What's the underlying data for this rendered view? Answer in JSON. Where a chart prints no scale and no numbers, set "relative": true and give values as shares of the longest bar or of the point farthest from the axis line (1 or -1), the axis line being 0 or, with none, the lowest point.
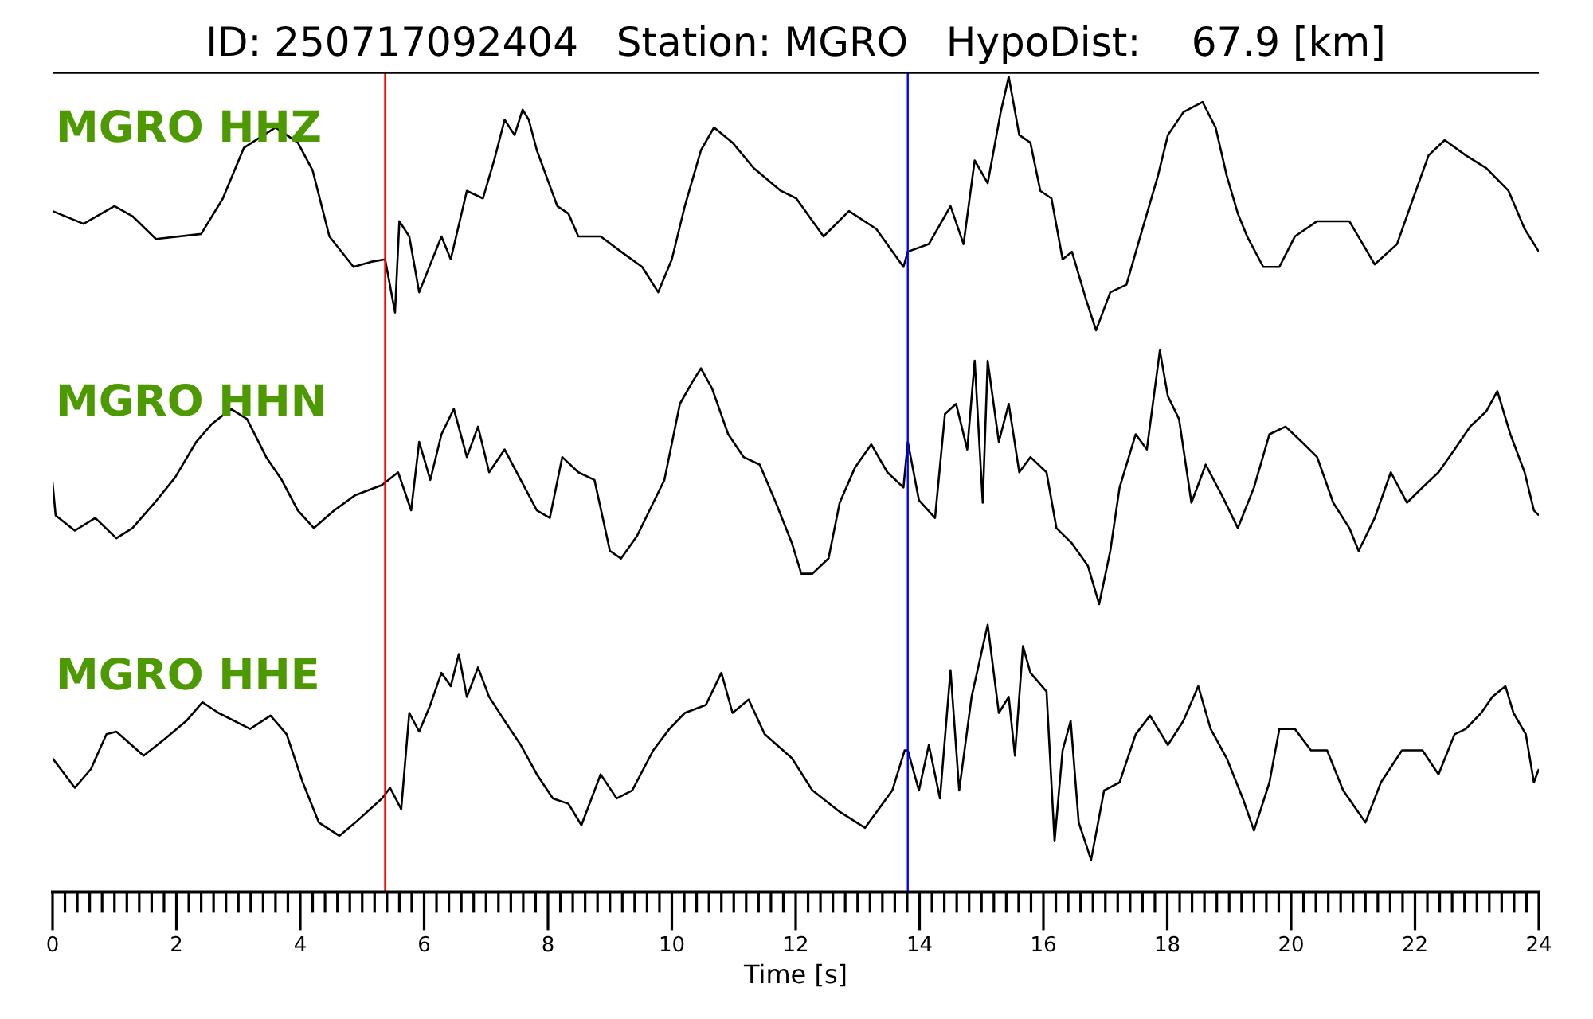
{
  "chart_data": [
    {
      "type": "line",
      "title": "ID: 250717092404   Station: MGRO   HypoDist:    67.9 [km]",
      "annotations": [
        "MGRO HHZ"
      ],
      "relative": true,
      "xlim": [
        0,
        24
      ],
      "tick_labels": false,
      "marker": "none",
      "x": [
        0,
        0.5,
        1.0,
        1.29,
        1.67,
        2.4,
        2.75,
        3.09,
        3.6,
        3.96,
        4.2,
        4.47,
        4.86,
        5.14,
        5.37,
        5.53,
        5.6,
        5.76,
        5.92,
        6.28,
        6.43,
        6.69,
        6.95,
        7.13,
        7.3,
        7.46,
        7.59,
        7.69,
        7.82,
        7.97,
        8.15,
        8.33,
        8.49,
        8.85,
        9.18,
        9.52,
        9.78,
        10.0,
        10.21,
        10.47,
        10.68,
        10.98,
        11.32,
        11.76,
        12.01,
        12.45,
        12.86,
        13.3,
        13.74,
        13.81,
        14.15,
        14.5,
        14.71,
        14.89,
        15.1,
        15.31,
        15.44,
        15.61,
        15.79,
        15.95,
        16.13,
        16.31,
        16.46,
        16.69,
        16.85,
        17.08,
        17.34,
        17.6,
        17.85,
        18.01,
        18.26,
        18.57,
        18.78,
        18.96,
        19.14,
        19.29,
        19.55,
        19.81,
        20.06,
        20.42,
        20.94,
        21.35,
        21.71,
        21.97,
        22.22,
        22.48,
        22.82,
        23.15,
        23.51,
        23.77,
        24
      ],
      "series": [
        {
          "color": "#000000",
          "values": [
            0.47,
            0.42,
            0.49,
            0.45,
            0.36,
            0.38,
            0.52,
            0.72,
            0.8,
            0.74,
            0.63,
            0.37,
            0.25,
            0.27,
            0.28,
            0.07,
            0.43,
            0.37,
            0.15,
            0.37,
            0.28,
            0.55,
            0.52,
            0.67,
            0.83,
            0.77,
            0.87,
            0.83,
            0.71,
            0.61,
            0.49,
            0.46,
            0.37,
            0.37,
            0.31,
            0.25,
            0.15,
            0.28,
            0.49,
            0.71,
            0.8,
            0.74,
            0.64,
            0.55,
            0.52,
            0.37,
            0.47,
            0.4,
            0.25,
            0.31,
            0.34,
            0.49,
            0.34,
            0.67,
            0.58,
            0.86,
            1,
            0.77,
            0.74,
            0.55,
            0.52,
            0.28,
            0.31,
            0.12,
            0,
            0.15,
            0.18,
            0.4,
            0.61,
            0.77,
            0.86,
            0.9,
            0.8,
            0.61,
            0.46,
            0.37,
            0.25,
            0.25,
            0.37,
            0.43,
            0.43,
            0.26,
            0.34,
            0.52,
            0.69,
            0.75,
            0.69,
            0.64,
            0.55,
            0.4,
            0.31
          ]
        }
      ],
      "ref_lines": [
        {
          "axis": "x",
          "value": 5.37,
          "color": "#ff0000"
        },
        {
          "axis": "x",
          "value": 13.81,
          "color": "#0000ff"
        }
      ]
    },
    {
      "type": "line",
      "annotations": [
        "MGRO HHN"
      ],
      "relative": true,
      "xlim": [
        0,
        24
      ],
      "tick_labels": false,
      "marker": "none",
      "x": [
        0,
        0.05,
        0.36,
        0.69,
        1.03,
        1.29,
        1.65,
        1.98,
        2.32,
        2.57,
        2.88,
        3.14,
        3.45,
        3.7,
        3.96,
        4.22,
        4.55,
        4.89,
        5.32,
        5.58,
        5.79,
        5.92,
        6.1,
        6.28,
        6.48,
        6.69,
        6.87,
        7.05,
        7.3,
        7.56,
        7.82,
        8.03,
        8.23,
        8.49,
        8.75,
        9.0,
        9.18,
        9.44,
        9.7,
        9.88,
        10.13,
        10.34,
        10.47,
        10.65,
        10.91,
        11.16,
        11.42,
        11.68,
        11.94,
        12.09,
        12.27,
        12.53,
        12.71,
        12.96,
        13.22,
        13.48,
        13.74,
        13.81,
        13.99,
        14.25,
        14.41,
        14.59,
        14.77,
        14.89,
        15.02,
        15.1,
        15.28,
        15.44,
        15.61,
        15.79,
        16.05,
        16.21,
        16.46,
        16.72,
        16.9,
        17.08,
        17.23,
        17.49,
        17.67,
        17.88,
        18.01,
        18.19,
        18.39,
        18.62,
        18.88,
        19.14,
        19.4,
        19.65,
        19.91,
        20.17,
        20.42,
        20.68,
        20.94,
        21.09,
        21.35,
        21.61,
        21.87,
        22.12,
        22.38,
        22.64,
        22.89,
        23.15,
        23.33,
        23.54,
        23.77,
        23.92,
        24
      ],
      "series": [
        {
          "color": "#000000",
          "values": [
            0.48,
            0.35,
            0.29,
            0.34,
            0.26,
            0.3,
            0.4,
            0.5,
            0.64,
            0.71,
            0.77,
            0.73,
            0.58,
            0.49,
            0.37,
            0.3,
            0.37,
            0.43,
            0.47,
            0.52,
            0.37,
            0.64,
            0.49,
            0.67,
            0.77,
            0.58,
            0.7,
            0.52,
            0.61,
            0.49,
            0.37,
            0.34,
            0.58,
            0.52,
            0.49,
            0.21,
            0.18,
            0.27,
            0.4,
            0.49,
            0.79,
            0.88,
            0.93,
            0.85,
            0.67,
            0.58,
            0.55,
            0.4,
            0.24,
            0.12,
            0.12,
            0.18,
            0.4,
            0.54,
            0.63,
            0.52,
            0.46,
            0.64,
            0.41,
            0.34,
            0.75,
            0.79,
            0.61,
            0.96,
            0.4,
            0.96,
            0.64,
            0.79,
            0.52,
            0.58,
            0.52,
            0.3,
            0.24,
            0.15,
            0,
            0.21,
            0.46,
            0.67,
            0.61,
            1,
            0.82,
            0.73,
            0.4,
            0.55,
            0.43,
            0.3,
            0.46,
            0.67,
            0.7,
            0.64,
            0.58,
            0.4,
            0.3,
            0.21,
            0.34,
            0.52,
            0.4,
            0.46,
            0.52,
            0.61,
            0.7,
            0.76,
            0.84,
            0.67,
            0.52,
            0.37,
            0.35
          ]
        }
      ],
      "ref_lines": [
        {
          "axis": "x",
          "value": 5.37,
          "color": "#ff0000"
        },
        {
          "axis": "x",
          "value": 13.81,
          "color": "#0000ff"
        }
      ]
    },
    {
      "type": "line",
      "annotations": [
        "MGRO HHE"
      ],
      "relative": true,
      "xlabel": "Time [s]",
      "xlim": [
        0,
        24
      ],
      "tick_labels": "x",
      "marker": "none",
      "xticks": [
        0,
        {
          "value": 0.2,
          "label": null
        },
        {
          "value": 0.4,
          "label": null
        },
        {
          "value": 0.6,
          "label": null
        },
        {
          "value": 0.8,
          "label": null
        },
        {
          "value": 1,
          "label": null
        },
        {
          "value": 1.2,
          "label": null
        },
        {
          "value": 1.4,
          "label": null
        },
        {
          "value": 1.6,
          "label": null
        },
        {
          "value": 1.8,
          "label": null
        },
        2,
        {
          "value": 2.2,
          "label": null
        },
        {
          "value": 2.4,
          "label": null
        },
        {
          "value": 2.6,
          "label": null
        },
        {
          "value": 2.8,
          "label": null
        },
        {
          "value": 3,
          "label": null
        },
        {
          "value": 3.2,
          "label": null
        },
        {
          "value": 3.4,
          "label": null
        },
        {
          "value": 3.6,
          "label": null
        },
        {
          "value": 3.8,
          "label": null
        },
        4,
        {
          "value": 4.2,
          "label": null
        },
        {
          "value": 4.4,
          "label": null
        },
        {
          "value": 4.6,
          "label": null
        },
        {
          "value": 4.8,
          "label": null
        },
        {
          "value": 5,
          "label": null
        },
        {
          "value": 5.2,
          "label": null
        },
        {
          "value": 5.4,
          "label": null
        },
        {
          "value": 5.6,
          "label": null
        },
        {
          "value": 5.8,
          "label": null
        },
        6,
        {
          "value": 6.2,
          "label": null
        },
        {
          "value": 6.4,
          "label": null
        },
        {
          "value": 6.6,
          "label": null
        },
        {
          "value": 6.8,
          "label": null
        },
        {
          "value": 7,
          "label": null
        },
        {
          "value": 7.2,
          "label": null
        },
        {
          "value": 7.4,
          "label": null
        },
        {
          "value": 7.6,
          "label": null
        },
        {
          "value": 7.8,
          "label": null
        },
        8,
        {
          "value": 8.2,
          "label": null
        },
        {
          "value": 8.4,
          "label": null
        },
        {
          "value": 8.6,
          "label": null
        },
        {
          "value": 8.8,
          "label": null
        },
        {
          "value": 9,
          "label": null
        },
        {
          "value": 9.2,
          "label": null
        },
        {
          "value": 9.4,
          "label": null
        },
        {
          "value": 9.6,
          "label": null
        },
        {
          "value": 9.8,
          "label": null
        },
        10,
        {
          "value": 10.2,
          "label": null
        },
        {
          "value": 10.4,
          "label": null
        },
        {
          "value": 10.6,
          "label": null
        },
        {
          "value": 10.8,
          "label": null
        },
        {
          "value": 11,
          "label": null
        },
        {
          "value": 11.2,
          "label": null
        },
        {
          "value": 11.4,
          "label": null
        },
        {
          "value": 11.6,
          "label": null
        },
        {
          "value": 11.8,
          "label": null
        },
        12,
        {
          "value": 12.2,
          "label": null
        },
        {
          "value": 12.4,
          "label": null
        },
        {
          "value": 12.6,
          "label": null
        },
        {
          "value": 12.8,
          "label": null
        },
        {
          "value": 13,
          "label": null
        },
        {
          "value": 13.2,
          "label": null
        },
        {
          "value": 13.4,
          "label": null
        },
        {
          "value": 13.6,
          "label": null
        },
        {
          "value": 13.8,
          "label": null
        },
        14,
        {
          "value": 14.2,
          "label": null
        },
        {
          "value": 14.4,
          "label": null
        },
        {
          "value": 14.6,
          "label": null
        },
        {
          "value": 14.8,
          "label": null
        },
        {
          "value": 15,
          "label": null
        },
        {
          "value": 15.2,
          "label": null
        },
        {
          "value": 15.4,
          "label": null
        },
        {
          "value": 15.6,
          "label": null
        },
        {
          "value": 15.8,
          "label": null
        },
        16,
        {
          "value": 16.2,
          "label": null
        },
        {
          "value": 16.4,
          "label": null
        },
        {
          "value": 16.6,
          "label": null
        },
        {
          "value": 16.8,
          "label": null
        },
        {
          "value": 17,
          "label": null
        },
        {
          "value": 17.2,
          "label": null
        },
        {
          "value": 17.4,
          "label": null
        },
        {
          "value": 17.6,
          "label": null
        },
        {
          "value": 17.8,
          "label": null
        },
        18,
        {
          "value": 18.2,
          "label": null
        },
        {
          "value": 18.4,
          "label": null
        },
        {
          "value": 18.6,
          "label": null
        },
        {
          "value": 18.8,
          "label": null
        },
        {
          "value": 19,
          "label": null
        },
        {
          "value": 19.2,
          "label": null
        },
        {
          "value": 19.4,
          "label": null
        },
        {
          "value": 19.6,
          "label": null
        },
        {
          "value": 19.8,
          "label": null
        },
        20,
        {
          "value": 20.2,
          "label": null
        },
        {
          "value": 20.4,
          "label": null
        },
        {
          "value": 20.6,
          "label": null
        },
        {
          "value": 20.8,
          "label": null
        },
        {
          "value": 21,
          "label": null
        },
        {
          "value": 21.2,
          "label": null
        },
        {
          "value": 21.4,
          "label": null
        },
        {
          "value": 21.6,
          "label": null
        },
        {
          "value": 21.8,
          "label": null
        },
        22,
        {
          "value": 22.2,
          "label": null
        },
        {
          "value": 22.4,
          "label": null
        },
        {
          "value": 22.6,
          "label": null
        },
        {
          "value": 22.8,
          "label": null
        },
        {
          "value": 23,
          "label": null
        },
        {
          "value": 23.2,
          "label": null
        },
        {
          "value": 23.4,
          "label": null
        },
        {
          "value": 23.6,
          "label": null
        },
        {
          "value": 23.8,
          "label": null
        },
        24
      ],
      "x": [
        0,
        0.36,
        0.62,
        0.87,
        1.03,
        1.47,
        1.8,
        2.16,
        2.42,
        2.68,
        3.19,
        3.52,
        3.78,
        4.04,
        4.3,
        4.63,
        4.89,
        5.32,
        5.45,
        5.63,
        5.76,
        5.92,
        6.1,
        6.28,
        6.43,
        6.56,
        6.69,
        6.87,
        7.05,
        7.3,
        7.56,
        7.82,
        8.08,
        8.33,
        8.54,
        8.85,
        9.11,
        9.36,
        9.7,
        9.96,
        10.21,
        10.55,
        10.8,
        10.98,
        11.24,
        11.5,
        11.94,
        12.27,
        12.71,
        13.12,
        13.56,
        13.76,
        13.81,
        13.99,
        14.15,
        14.33,
        14.5,
        14.64,
        14.84,
        15.1,
        15.28,
        15.44,
        15.54,
        15.67,
        15.79,
        16.05,
        16.18,
        16.31,
        16.44,
        16.57,
        16.77,
        16.98,
        17.23,
        17.49,
        17.72,
        18.01,
        18.26,
        18.5,
        18.7,
        18.96,
        19.22,
        19.4,
        19.65,
        19.81,
        20.06,
        20.32,
        20.58,
        20.84,
        21.2,
        21.45,
        21.79,
        22.12,
        22.38,
        22.64,
        22.82,
        23.07,
        23.25,
        23.46,
        23.59,
        23.79,
        23.92,
        24
      ],
      "series": [
        {
          "color": "#000000",
          "values": [
            0.5,
            0.39,
            0.46,
            0.59,
            0.6,
            0.51,
            0.57,
            0.64,
            0.71,
            0.67,
            0.61,
            0.66,
            0.59,
            0.41,
            0.26,
            0.21,
            0.26,
            0.35,
            0.39,
            0.31,
            0.67,
            0.6,
            0.7,
            0.82,
            0.77,
            0.89,
            0.73,
            0.84,
            0.73,
            0.64,
            0.55,
            0.44,
            0.35,
            0.33,
            0.25,
            0.44,
            0.35,
            0.38,
            0.53,
            0.61,
            0.67,
            0.7,
            0.82,
            0.67,
            0.72,
            0.59,
            0.5,
            0.38,
            0.3,
            0.24,
            0.38,
            0.53,
            0.53,
            0.38,
            0.55,
            0.35,
            0.83,
            0.38,
            0.73,
            1,
            0.67,
            0.73,
            0.51,
            0.92,
            0.82,
            0.75,
            0.19,
            0.53,
            0.64,
            0.26,
            0.12,
            0.38,
            0.41,
            0.59,
            0.66,
            0.55,
            0.64,
            0.77,
            0.61,
            0.5,
            0.35,
            0.23,
            0.41,
            0.61,
            0.61,
            0.53,
            0.53,
            0.38,
            0.26,
            0.41,
            0.53,
            0.53,
            0.44,
            0.59,
            0.61,
            0.67,
            0.73,
            0.77,
            0.67,
            0.59,
            0.41,
            0.46
          ]
        }
      ],
      "ref_lines": [
        {
          "axis": "x",
          "value": 5.37,
          "color": "#ff0000"
        },
        {
          "axis": "x",
          "value": 13.81,
          "color": "#0000ff"
        }
      ]
    }
  ]
}
